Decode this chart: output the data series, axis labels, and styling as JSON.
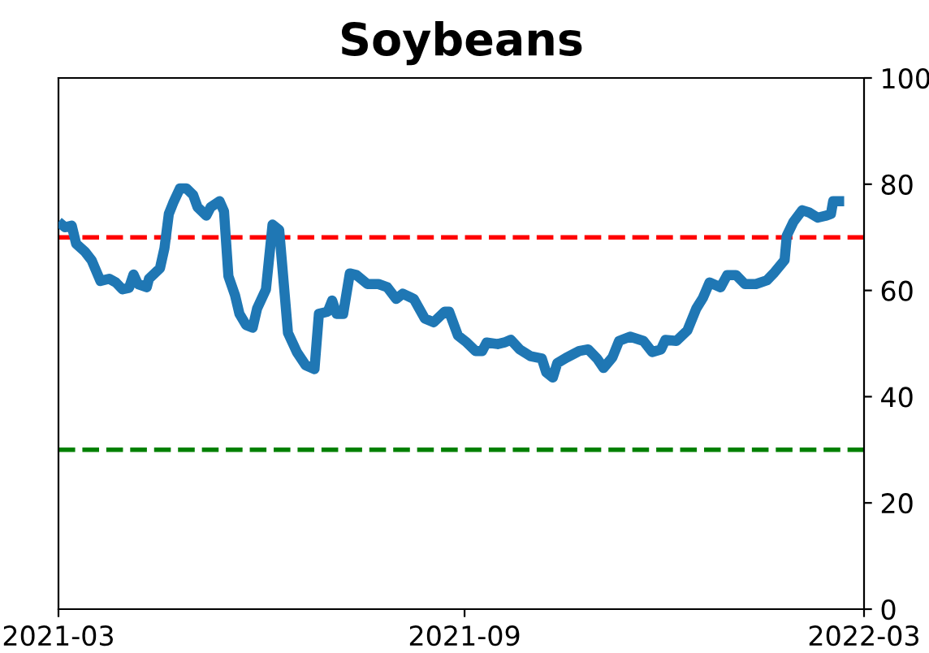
{
  "chart_data": {
    "type": "line",
    "title": "Soybeans",
    "xlim": [
      "2021-03-01",
      "2022-03-01"
    ],
    "xticks": [
      {
        "value": "2021-03-01",
        "label": "2021-03"
      },
      {
        "value": "2021-09-01",
        "label": "2021-09"
      },
      {
        "value": "2022-03-01",
        "label": "2022-03"
      }
    ],
    "ylim": [
      0,
      100
    ],
    "yticks": [
      0,
      20,
      40,
      60,
      80,
      100
    ],
    "grid": false,
    "ref_lines": [
      {
        "axis": "y",
        "value": 70,
        "color": "#ff0000",
        "line_style": "dashed"
      },
      {
        "axis": "y",
        "value": 30,
        "color": "#008000",
        "line_style": "dashed"
      }
    ],
    "series": [
      {
        "color": "#1f77b4",
        "x": [
          "2021-03-01",
          "2021-03-04",
          "2021-03-07",
          "2021-03-09",
          "2021-03-13",
          "2021-03-16",
          "2021-03-20",
          "2021-03-24",
          "2021-03-27",
          "2021-03-30",
          "2021-04-02",
          "2021-04-04",
          "2021-04-06",
          "2021-04-10",
          "2021-04-11",
          "2021-04-16",
          "2021-04-18",
          "2021-04-20",
          "2021-04-22",
          "2021-04-25",
          "2021-04-28",
          "2021-05-01",
          "2021-05-03",
          "2021-05-07",
          "2021-05-09",
          "2021-05-13",
          "2021-05-15",
          "2021-05-17",
          "2021-05-20",
          "2021-05-22",
          "2021-05-25",
          "2021-05-28",
          "2021-05-30",
          "2021-06-03",
          "2021-06-06",
          "2021-06-09",
          "2021-06-13",
          "2021-06-17",
          "2021-06-21",
          "2021-06-25",
          "2021-06-27",
          "2021-07-01",
          "2021-07-03",
          "2021-07-05",
          "2021-07-08",
          "2021-07-11",
          "2021-07-14",
          "2021-07-19",
          "2021-07-24",
          "2021-07-28",
          "2021-08-01",
          "2021-08-04",
          "2021-08-09",
          "2021-08-14",
          "2021-08-18",
          "2021-08-23",
          "2021-08-25",
          "2021-08-29",
          "2021-09-02",
          "2021-09-06",
          "2021-09-09",
          "2021-09-11",
          "2021-09-16",
          "2021-09-19",
          "2021-09-22",
          "2021-09-26",
          "2021-10-01",
          "2021-10-06",
          "2021-10-08",
          "2021-10-11",
          "2021-10-13",
          "2021-10-17",
          "2021-10-23",
          "2021-10-27",
          "2021-10-31",
          "2021-11-03",
          "2021-11-07",
          "2021-11-10",
          "2021-11-15",
          "2021-11-21",
          "2021-11-25",
          "2021-11-29",
          "2021-12-01",
          "2021-12-06",
          "2021-12-11",
          "2021-12-15",
          "2021-12-18",
          "2021-12-21",
          "2021-12-26",
          "2021-12-29",
          "2022-01-02",
          "2022-01-06",
          "2022-01-11",
          "2022-01-16",
          "2022-01-19",
          "2022-01-24",
          "2022-01-25",
          "2022-01-28",
          "2022-02-01",
          "2022-02-04",
          "2022-02-08",
          "2022-02-12",
          "2022-02-14",
          "2022-02-15",
          "2022-02-20"
        ],
        "values": [
          72.9,
          71.9,
          72.2,
          68.8,
          67.3,
          65.7,
          61.8,
          62.2,
          61.5,
          60.2,
          60.5,
          63.0,
          61.2,
          60.6,
          62.2,
          64.2,
          67.9,
          74.4,
          76.5,
          79.2,
          79.2,
          78.0,
          75.7,
          74.1,
          75.7,
          76.8,
          74.9,
          62.7,
          59.1,
          55.6,
          53.5,
          53.0,
          56.6,
          60.2,
          72.4,
          71.4,
          52.0,
          48.4,
          45.9,
          45.2,
          55.6,
          56.0,
          58.1,
          55.6,
          55.6,
          63.2,
          62.9,
          61.2,
          61.2,
          60.6,
          58.4,
          59.4,
          58.4,
          54.7,
          54.0,
          56.0,
          56.0,
          51.5,
          50.2,
          48.6,
          48.6,
          50.2,
          49.9,
          50.2,
          50.7,
          48.9,
          47.6,
          47.2,
          44.6,
          43.6,
          46.3,
          47.3,
          48.6,
          48.9,
          47.2,
          45.4,
          47.4,
          50.5,
          51.3,
          50.5,
          48.4,
          48.9,
          50.7,
          50.5,
          52.5,
          56.6,
          58.6,
          61.5,
          60.6,
          62.9,
          62.9,
          61.2,
          61.2,
          61.9,
          63.2,
          65.7,
          70.3,
          72.9,
          75.1,
          74.7,
          73.7,
          74.1,
          74.4,
          76.8,
          76.8
        ]
      }
    ]
  }
}
